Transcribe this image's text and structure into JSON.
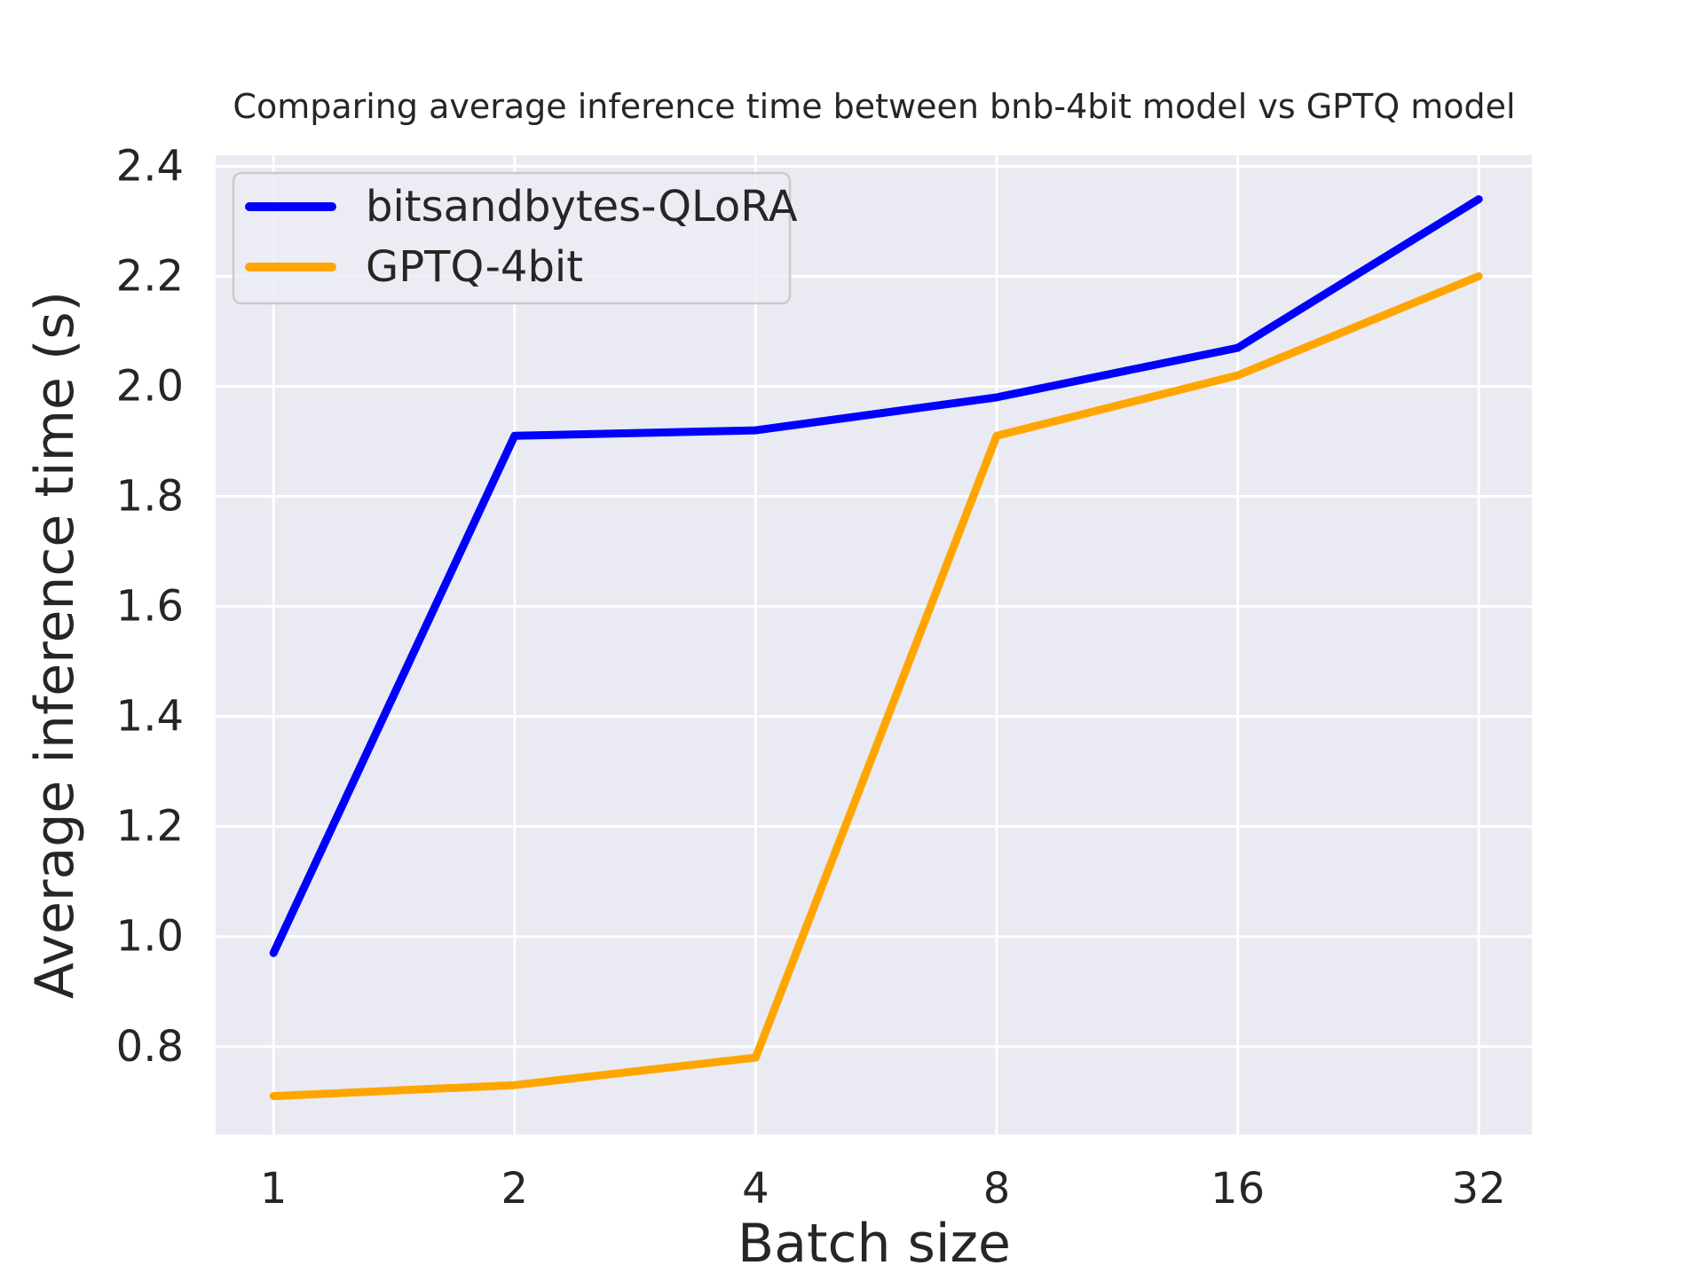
{
  "figure": {
    "title": "Comparing average inference time between bnb-4bit model vs GPTQ model",
    "background_color": "#ffffff",
    "text_color": "#262626"
  },
  "chart_data": {
    "type": "line",
    "x": [
      1,
      2,
      4,
      8,
      16,
      32
    ],
    "x_scale": "log2",
    "x_tick_labels": [
      "1",
      "2",
      "4",
      "8",
      "16",
      "32"
    ],
    "y_ticks": [
      0.8,
      1.0,
      1.2,
      1.4,
      1.6,
      1.8,
      2.0,
      2.2,
      2.4
    ],
    "y_tick_labels": [
      "0.8",
      "1.0",
      "1.2",
      "1.4",
      "1.6",
      "1.8",
      "2.0",
      "2.2",
      "2.4"
    ],
    "ylim": [
      0.64,
      2.42
    ],
    "title": "Comparing average inference time between bnb-4bit model vs GPTQ model",
    "xlabel": "Batch size",
    "ylabel": "Average inference time (s)",
    "grid": true,
    "legend_position": "upper left",
    "plot_background": "#eaeaf2",
    "gridline_color": "#ffffff",
    "series": [
      {
        "name": "bitsandbytes-QLoRA",
        "color": "#0000ff",
        "values": [
          0.97,
          1.91,
          1.92,
          1.98,
          2.07,
          2.34
        ]
      },
      {
        "name": "GPTQ-4bit",
        "color": "#ffa500",
        "values": [
          0.71,
          0.73,
          0.78,
          1.91,
          2.02,
          2.2
        ]
      }
    ]
  }
}
